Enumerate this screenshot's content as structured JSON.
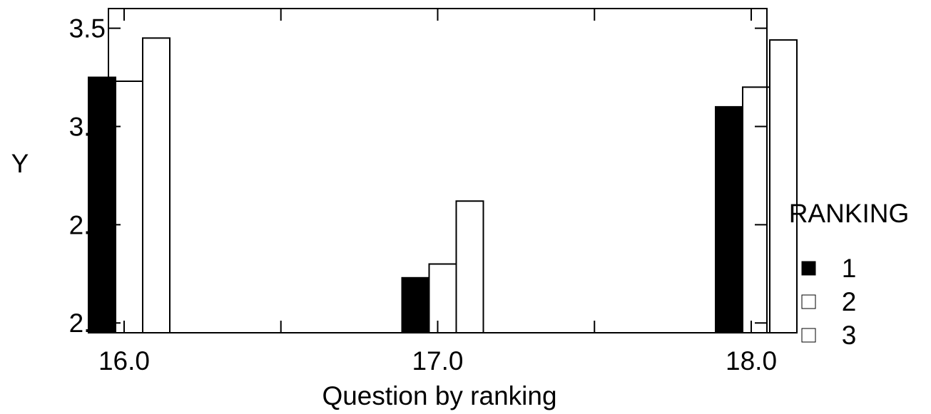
{
  "chart_data": {
    "type": "bar",
    "title": "",
    "xlabel": "Question by ranking",
    "ylabel": "Y",
    "categories": [
      "16.0",
      "17.0",
      "18.0"
    ],
    "x_values": [
      16.0,
      17.0,
      18.0
    ],
    "xlim": [
      15.95,
      18.05
    ],
    "ylim": [
      1.95,
      3.6
    ],
    "yticks": [
      "2.0",
      "2.5",
      "3.0",
      "3.5"
    ],
    "ytick_values": [
      2.0,
      2.5,
      3.0,
      3.5
    ],
    "legend": {
      "title": "RANKING",
      "placement": "right"
    },
    "series": [
      {
        "name": "1",
        "fill": "#000000",
        "values": [
          3.25,
          2.23,
          3.1
        ]
      },
      {
        "name": "2",
        "fill": "#ffffff",
        "values": [
          3.23,
          2.3,
          3.2
        ]
      },
      {
        "name": "3",
        "fill": "#ffffff",
        "values": [
          3.45,
          2.62,
          3.44
        ]
      }
    ],
    "grid": false
  }
}
